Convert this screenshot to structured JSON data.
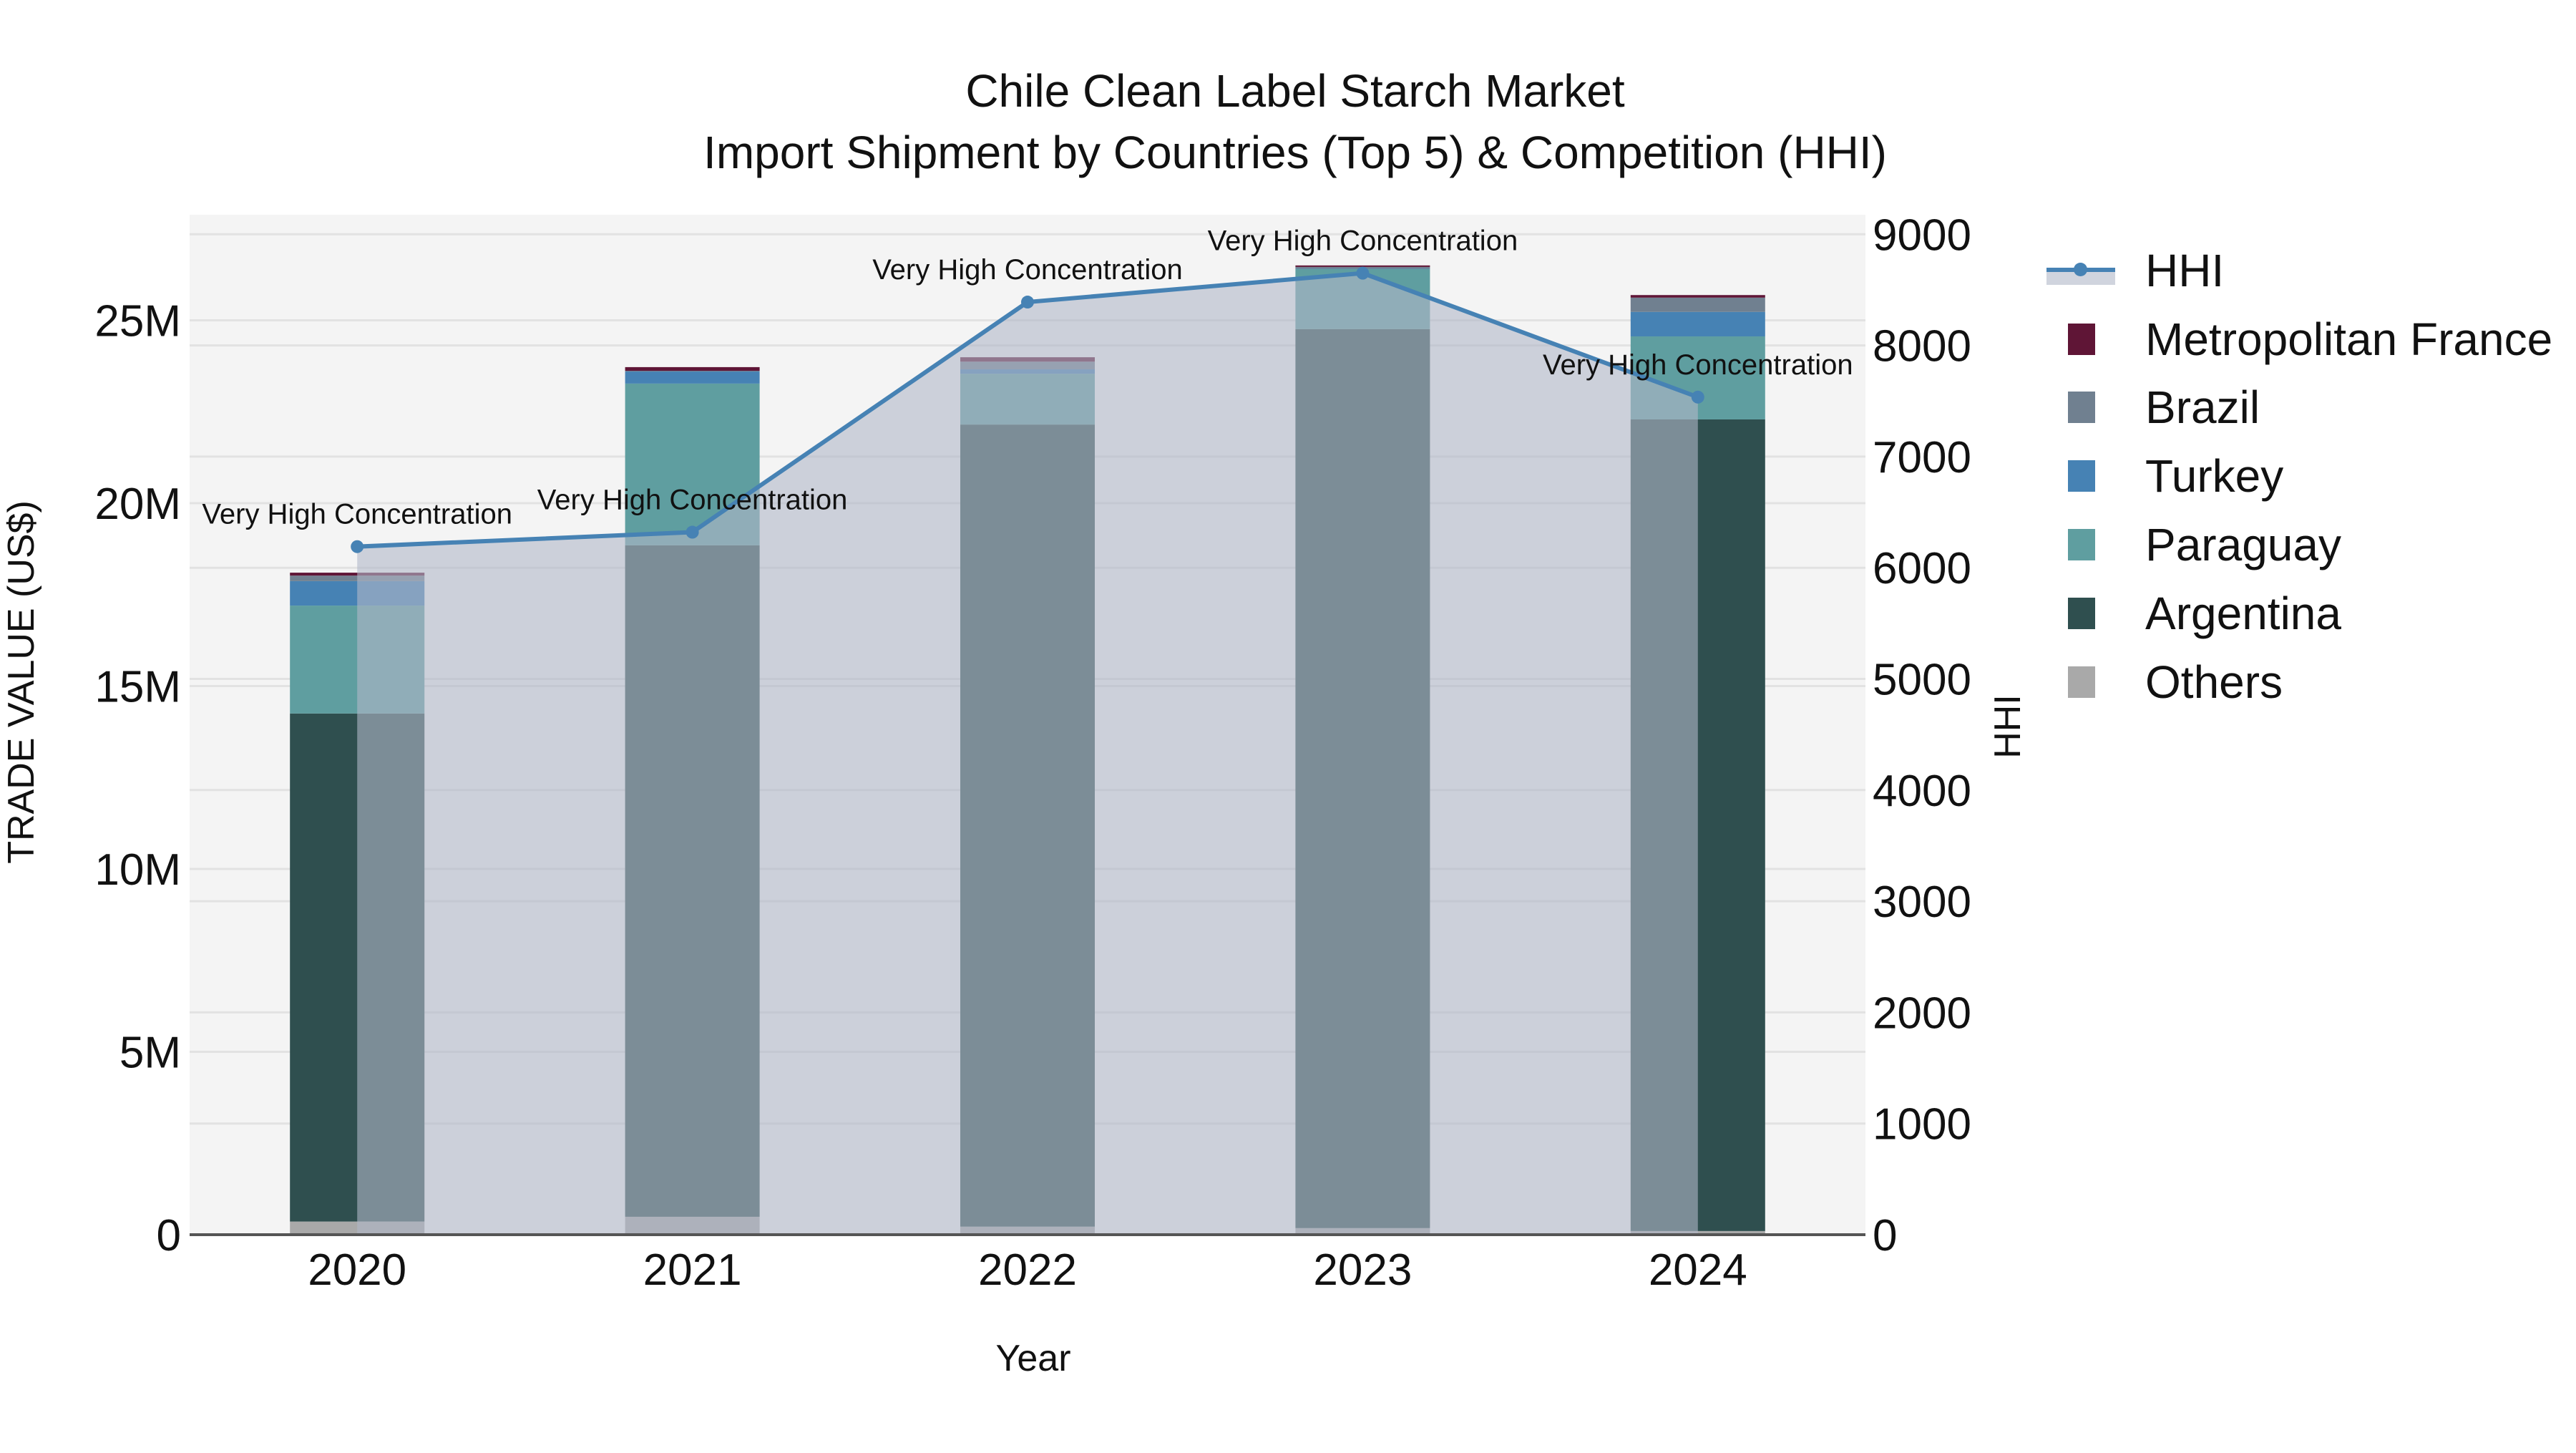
{
  "title": {
    "line1": "Chile Clean Label Starch Market",
    "line2": "Import Shipment by Countries (Top 5) & Competition (HHI)"
  },
  "axes": {
    "x_title": "Year",
    "y_left_title": "TRADE VALUE (US$)",
    "y_right_title": "HHI"
  },
  "legend": {
    "items": [
      {
        "label": "HHI",
        "type": "line",
        "color": "#4682b4"
      },
      {
        "label": "Metropolitan France",
        "type": "bar",
        "color": "#5f1536"
      },
      {
        "label": "Brazil",
        "type": "bar",
        "color": "#708090"
      },
      {
        "label": "Turkey",
        "type": "bar",
        "color": "#4682b4"
      },
      {
        "label": "Paraguay",
        "type": "bar",
        "color": "#5f9ea0"
      },
      {
        "label": "Argentina",
        "type": "bar",
        "color": "#2f4f4f"
      },
      {
        "label": "Others",
        "type": "bar",
        "color": "#a9a9a9"
      }
    ]
  },
  "chart_data": {
    "type": "bar",
    "stacked": true,
    "title": "Chile Clean Label Starch Market — Import Shipment by Countries (Top 5) & Competition (HHI)",
    "xlabel": "Year",
    "ylabel": "TRADE VALUE (US$)",
    "y2label": "HHI",
    "categories": [
      "2020",
      "2021",
      "2022",
      "2023",
      "2024"
    ],
    "ylim": [
      0,
      27800000
    ],
    "y_ticks": [
      0,
      5000000,
      10000000,
      15000000,
      20000000,
      25000000
    ],
    "y_tick_labels": [
      "0",
      "5M",
      "10M",
      "15M",
      "20M",
      "25M"
    ],
    "y2lim": [
      0,
      9200
    ],
    "y2_ticks": [
      0,
      1000,
      2000,
      3000,
      4000,
      5000,
      6000,
      7000,
      8000,
      9000
    ],
    "y2_tick_labels": [
      "0",
      "1000",
      "2000",
      "3000",
      "4000",
      "5000",
      "6000",
      "7000",
      "8000",
      "9000"
    ],
    "grid": true,
    "legend_position": "right",
    "series": [
      {
        "name": "Others",
        "color": "#a9a9a9",
        "values": [
          360000,
          490000,
          220000,
          180000,
          100000
        ]
      },
      {
        "name": "Argentina",
        "color": "#2f4f4f",
        "values": [
          13890000,
          18360000,
          21930000,
          24580000,
          22190000
        ]
      },
      {
        "name": "Paraguay",
        "color": "#5f9ea0",
        "values": [
          2950000,
          4420000,
          1390000,
          1640000,
          2270000
        ]
      },
      {
        "name": "Turkey",
        "color": "#4682b4",
        "values": [
          670000,
          330000,
          120000,
          10000,
          670000
        ]
      },
      {
        "name": "Brazil",
        "color": "#708090",
        "values": [
          150000,
          20000,
          210000,
          50000,
          390000
        ]
      },
      {
        "name": "Metropolitan France",
        "color": "#5f1536",
        "values": [
          80000,
          100000,
          120000,
          40000,
          70000
        ]
      }
    ],
    "line_series": {
      "name": "HHI",
      "axis": "right",
      "color": "#4682b4",
      "fill": "rgba(176,184,200,0.6)",
      "values": [
        6190,
        6320,
        8390,
        8650,
        7535
      ],
      "annotations": [
        "Very High Concentration",
        "Very High Concentration",
        "Very High Concentration",
        "Very High Concentration",
        "Very High Concentration"
      ]
    }
  }
}
